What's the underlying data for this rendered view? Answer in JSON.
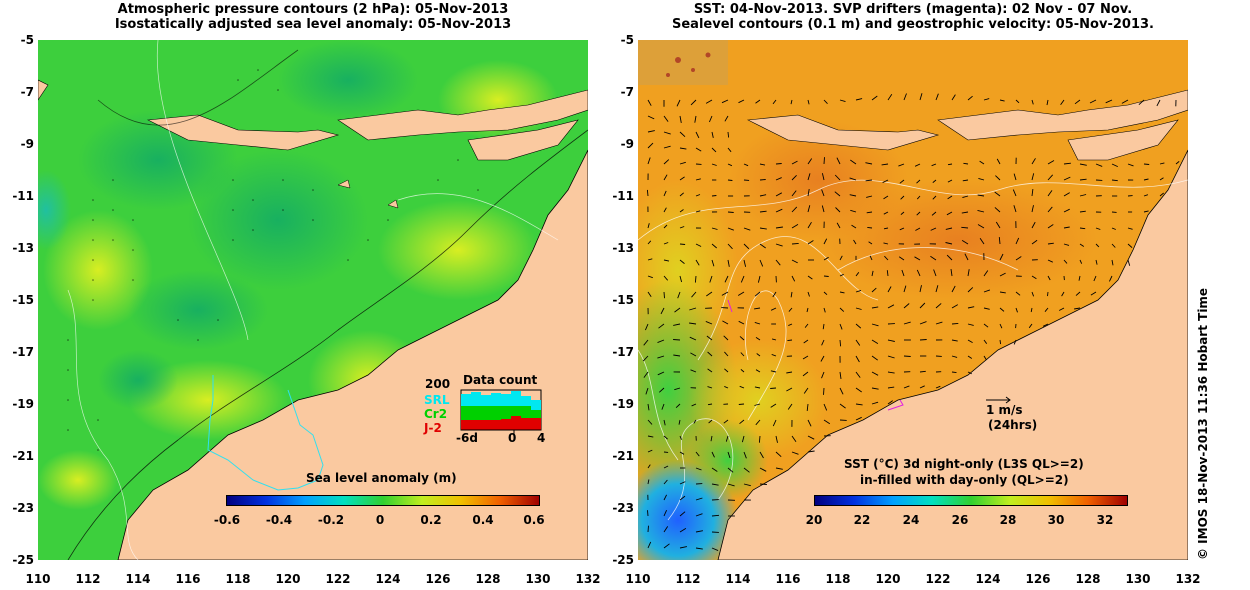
{
  "left_panel": {
    "title_line1": "Atmospheric pressure contours (2 hPa): 05-Nov-2013",
    "title_line2": "Isostatically adjusted sea level anomaly: 05-Nov-2013",
    "colorbar": {
      "label": "Sea level anomaly (m)",
      "ticks": [
        "-0.6",
        "-0.4",
        "-0.2",
        "0",
        "0.2",
        "0.4",
        "0.6"
      ],
      "range": [
        -0.6,
        0.6
      ]
    },
    "inset": {
      "title": "Data count",
      "y_label": "200",
      "legend": [
        {
          "name": "SRL",
          "color": "#00e8f0"
        },
        {
          "name": "Cr2",
          "color": "#00d000"
        },
        {
          "name": "J-2",
          "color": "#e00000"
        }
      ],
      "x_ticks": [
        "-6d",
        "0",
        "4"
      ]
    }
  },
  "right_panel": {
    "title_line1": "SST: 04-Nov-2013. SVP drifters (magenta): 02 Nov - 07 Nov.",
    "title_line2": "Sealevel contours (0.1 m) and geostrophic velocity: 05-Nov-2013.",
    "colorbar": {
      "label_line1": "SST (°C) 3d night-only (L3S QL>=2)",
      "label_line2": "in-filled with day-only (QL>=2)",
      "ticks": [
        "20",
        "22",
        "24",
        "26",
        "28",
        "30",
        "32"
      ],
      "range": [
        20,
        33.2
      ]
    },
    "velocity_scale_value": "1 m/s",
    "velocity_scale_note": "(24hrs)"
  },
  "axes": {
    "y_ticks": [
      "-5",
      "-7",
      "-9",
      "-11",
      "-13",
      "-15",
      "-17",
      "-19",
      "-21",
      "-23",
      "-25"
    ],
    "x_ticks": [
      "110",
      "112",
      "114",
      "116",
      "118",
      "120",
      "122",
      "124",
      "126",
      "128",
      "130",
      "132"
    ]
  },
  "credit": "© IMOS 18-Nov-2013 11:36 Hobart Time",
  "colors": {
    "land": "#fac9a0",
    "sla_green": "#3cd23c",
    "sst_orange": "#f0a020"
  }
}
